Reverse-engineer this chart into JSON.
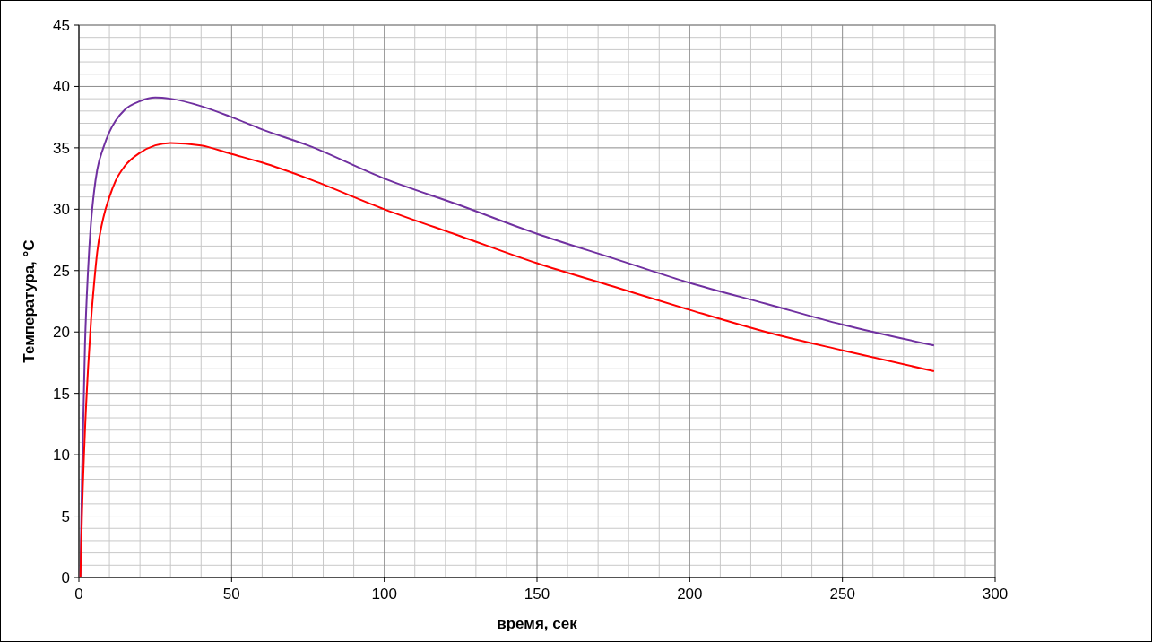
{
  "chart_data": {
    "type": "line",
    "xlabel": "время, сек",
    "ylabel": "Температура, °C",
    "xlim": [
      0,
      300
    ],
    "ylim": [
      0,
      45
    ],
    "xticks": [
      0,
      50,
      100,
      150,
      200,
      250,
      300
    ],
    "yticks": [
      0,
      5,
      10,
      15,
      20,
      25,
      30,
      35,
      40,
      45
    ],
    "grid": true,
    "marker": "none",
    "line_style": "solid",
    "series": [
      {
        "color": "#7030a0",
        "x": [
          0.5,
          1,
          2,
          3,
          4,
          5,
          6,
          8,
          10,
          12,
          15,
          20,
          25,
          30,
          40,
          50,
          60,
          75,
          100,
          125,
          150,
          175,
          200,
          225,
          250,
          280
        ],
        "values": [
          0,
          8,
          19,
          25,
          29,
          31.5,
          33.2,
          35,
          36.3,
          37.2,
          38.1,
          38.8,
          39.1,
          39,
          38.4,
          37.5,
          36.5,
          35.2,
          32.5,
          30.3,
          28,
          26,
          24,
          22.3,
          20.6,
          18.9
        ]
      },
      {
        "color": "#ff0000",
        "x": [
          0.5,
          1,
          2,
          3,
          4,
          5,
          6,
          8,
          10,
          12,
          15,
          20,
          25,
          30,
          40,
          50,
          60,
          75,
          100,
          125,
          150,
          175,
          200,
          225,
          250,
          280
        ],
        "values": [
          0,
          5,
          12,
          17,
          21,
          24,
          26.5,
          29.3,
          31,
          32.3,
          33.5,
          34.6,
          35.2,
          35.4,
          35.2,
          34.5,
          33.8,
          32.5,
          30,
          27.8,
          25.6,
          23.7,
          21.8,
          20,
          18.5,
          16.8
        ]
      }
    ]
  }
}
